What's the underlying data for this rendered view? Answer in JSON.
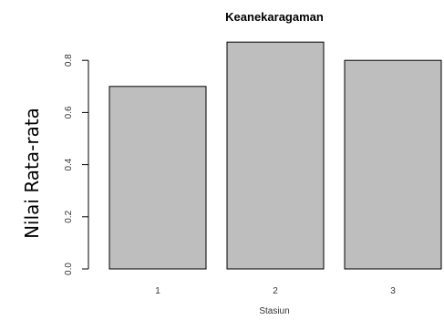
{
  "chart_data": {
    "type": "bar",
    "title": "Keanekaragaman",
    "xlabel": "Stasiun",
    "ylabel": "Nilai  Rata-rata",
    "categories": [
      "1",
      "2",
      "3"
    ],
    "values": [
      0.7,
      0.87,
      0.8
    ],
    "ylim": [
      0,
      0.8
    ],
    "yticks": [
      0.0,
      0.2,
      0.4,
      0.6,
      0.8
    ],
    "ytick_labels": [
      "0.0",
      "0.2",
      "0.4",
      "0.6",
      "0.8"
    ],
    "grid": false,
    "legend": "none",
    "colors": {
      "bar_fill": "#bebebe",
      "bar_stroke": "#000000",
      "axis": "#000000",
      "text": "#000000"
    }
  }
}
